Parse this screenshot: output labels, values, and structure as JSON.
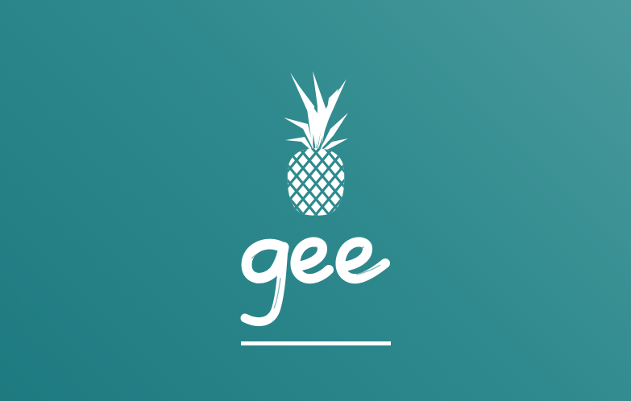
{
  "brand": {
    "wordmark": "gee",
    "icon": "pineapple-icon",
    "colors": {
      "background_light": "#4a9a9c",
      "background_dark": "#1d7a80",
      "foreground": "#ffffff"
    }
  }
}
